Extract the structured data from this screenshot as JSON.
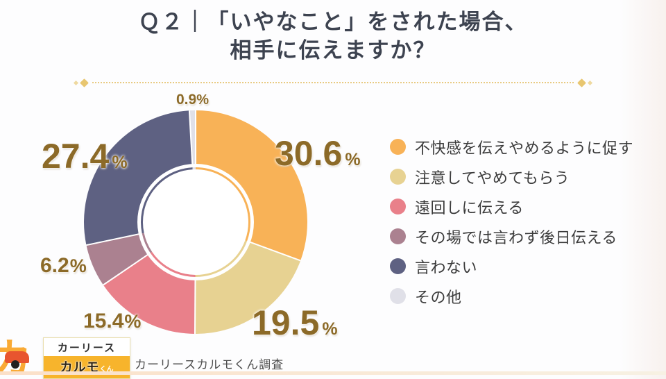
{
  "title": {
    "line1": "Ｑ２｜「いやなこと」をされた場合、",
    "line2": "相手に伝えますか？"
  },
  "chart_data": {
    "type": "pie",
    "title": "Ｑ２｜「いやなこと」をされた場合、相手に伝えますか？",
    "donut": true,
    "start_angle_deg": 0,
    "direction": "clockwise",
    "unit": "%",
    "legend_position": "right",
    "slices": [
      {
        "label": "不快感を伝えやめるように促す",
        "value": 30.6,
        "pct": "30.6",
        "color": "#f8b257"
      },
      {
        "label": "注意してやめてもらう",
        "value": 19.5,
        "pct": "19.5",
        "color": "#e7d292"
      },
      {
        "label": "遠回しに伝える",
        "value": 15.4,
        "pct": "15.4",
        "color": "#e9808a"
      },
      {
        "label": "その場では言わず後日伝える",
        "value": 6.2,
        "pct": "6.2",
        "color": "#ab8190"
      },
      {
        "label": "言わない",
        "value": 27.4,
        "pct": "27.4",
        "color": "#5e6182"
      },
      {
        "label": "その他",
        "value": 0.9,
        "pct": "0.9",
        "color": "#e0e0e8"
      }
    ]
  },
  "footer": {
    "logo_ka": "カ",
    "logo_top": "カーリース",
    "logo_bottom_main": "カルモ",
    "logo_bottom_suffix": "くん",
    "source": "カーリースカルモくん調査"
  },
  "colors": {
    "value_text": "#8c6a28",
    "title_text": "#3d4350",
    "divider_gold": "#e8ca80",
    "logo_amber": "#f7b42c",
    "logo_car_red": "#e8552f"
  }
}
